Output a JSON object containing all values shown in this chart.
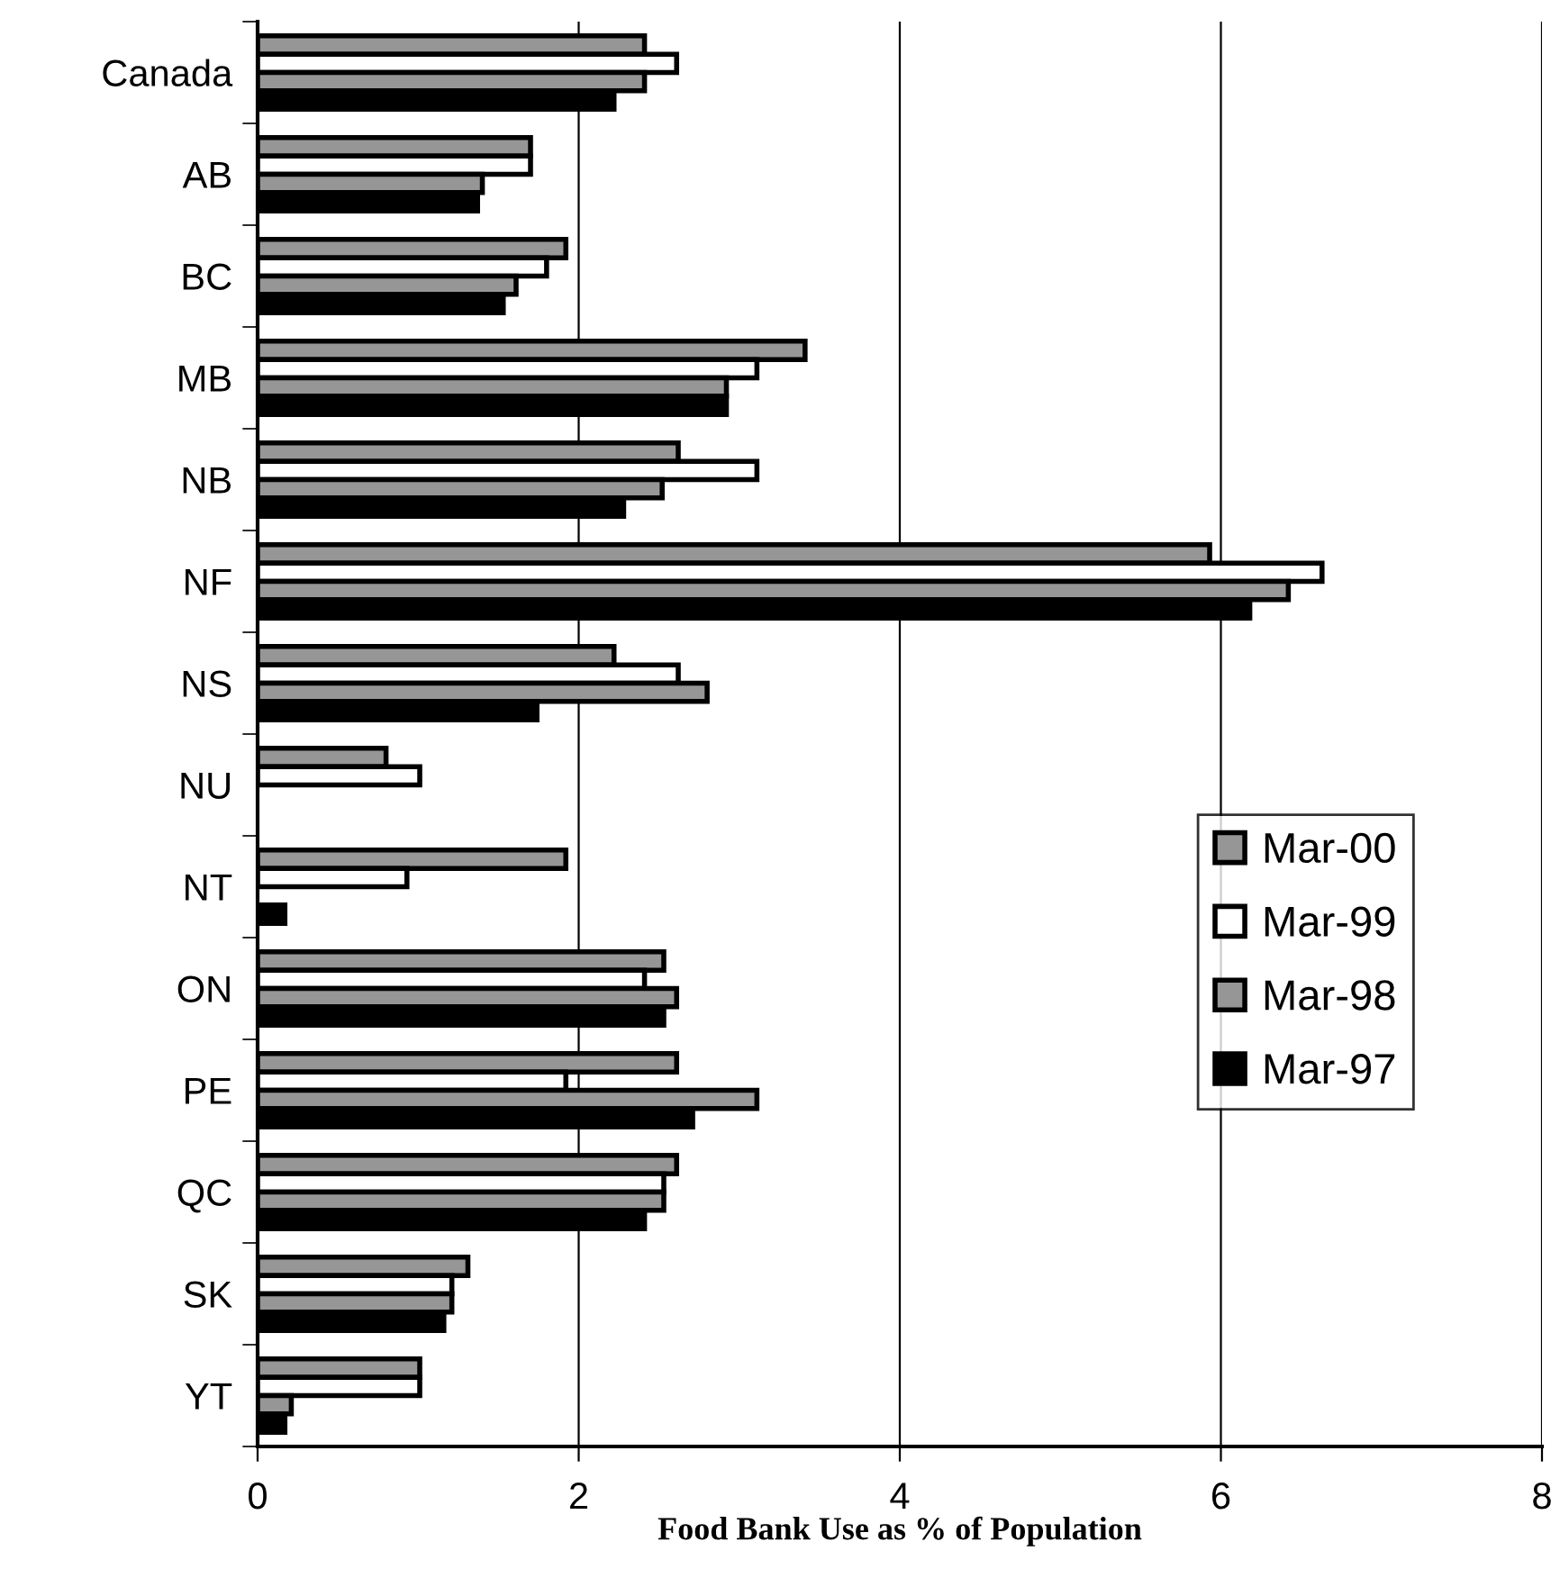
{
  "chart_data": {
    "type": "bar",
    "orientation": "horizontal",
    "xlabel": "Food Bank Use as % of Population",
    "categories": [
      "Canada",
      "AB",
      "BC",
      "MB",
      "NB",
      "NF",
      "NS",
      "NU",
      "NT",
      "ON",
      "PE",
      "QC",
      "SK",
      "YT"
    ],
    "series": [
      {
        "name": "Mar-00",
        "color": "#969696",
        "values": [
          2.41,
          1.7,
          1.92,
          3.41,
          2.62,
          5.93,
          2.22,
          0.8,
          1.92,
          2.53,
          2.61,
          2.61,
          1.31,
          1.01
        ]
      },
      {
        "name": "Mar-99",
        "color": "#ffffff",
        "values": [
          2.61,
          1.7,
          1.8,
          3.11,
          3.11,
          6.63,
          2.62,
          1.01,
          0.93,
          2.41,
          1.92,
          2.53,
          1.21,
          1.01
        ]
      },
      {
        "name": "Mar-98",
        "color": "#969696",
        "values": [
          2.41,
          1.4,
          1.61,
          2.92,
          2.52,
          6.42,
          2.8,
          null,
          null,
          2.61,
          3.11,
          2.53,
          1.21,
          0.21
        ]
      },
      {
        "name": "Mar-97",
        "color": "#000000",
        "values": [
          2.22,
          1.37,
          1.53,
          2.92,
          2.28,
          6.18,
          1.74,
          null,
          0.17,
          2.53,
          2.71,
          2.41,
          1.16,
          0.17
        ]
      }
    ],
    "xlim": [
      0,
      8
    ],
    "xticks": [
      0,
      2,
      4,
      6,
      8
    ],
    "grid": "x",
    "legend": "right"
  }
}
